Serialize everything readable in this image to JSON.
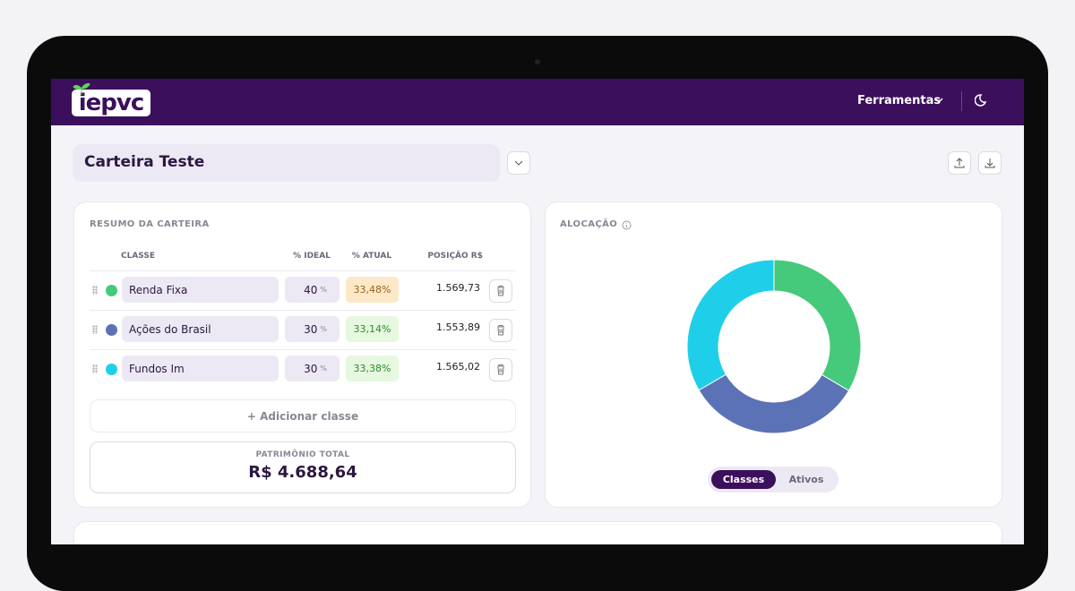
{
  "header": {
    "logo": "iepvc",
    "menu": "Ferramentas"
  },
  "portfolio": {
    "name": "Carteira Teste"
  },
  "summary": {
    "title": "RESUMO DA CARTEIRA",
    "columns": [
      "CLASSE",
      "% IDEAL",
      "% ATUAL",
      "POSIÇÃO R$"
    ],
    "rows": [
      {
        "name": "Renda Fixa",
        "ideal": "40",
        "unit": "%",
        "current": "33,48%",
        "position": "1.569,73"
      },
      {
        "name": "Ações do Brasil",
        "ideal": "30",
        "unit": "%",
        "current": "33,14%",
        "position": "1.553,89"
      },
      {
        "name": "Fundos Im",
        "ideal": "30",
        "unit": "%",
        "current": "33,38%",
        "position": "1.565,02"
      }
    ],
    "add_button": "+ Adicionar classe",
    "total_label": "PATRIMÔNIO TOTAL",
    "total": "R$ 4.688,64"
  },
  "allocation": {
    "title": "ALOCAÇÃO",
    "tabs": [
      "Classes",
      "Ativos"
    ]
  },
  "chart_data": {
    "type": "donut",
    "values": [
      33.48,
      33.14,
      33.38
    ],
    "colors": [
      "#45c97a",
      "#5b72b6",
      "#1fcfe9"
    ]
  }
}
